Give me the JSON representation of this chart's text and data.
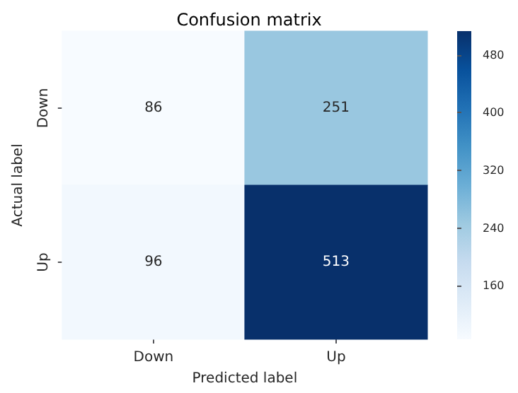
{
  "chart_data": {
    "type": "heatmap",
    "title": "Confusion matrix",
    "xlabel": "Predicted label",
    "ylabel": "Actual label",
    "categories": [
      "Down",
      "Up"
    ],
    "y_categories": [
      "Down",
      "Up"
    ],
    "cells": [
      [
        86,
        251
      ],
      [
        96,
        513
      ]
    ],
    "clim": [
      86,
      513
    ],
    "cticks": [
      160,
      240,
      320,
      400,
      480
    ],
    "data_labels": true
  }
}
